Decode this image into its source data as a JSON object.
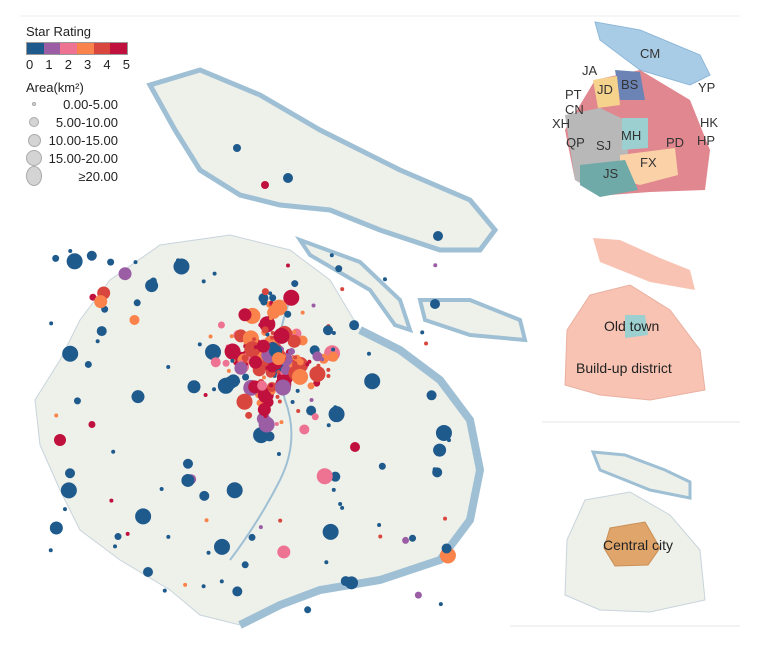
{
  "legend": {
    "star_title": "Star Rating",
    "star_ticks": [
      "0",
      "1",
      "2",
      "3",
      "4",
      "5"
    ],
    "star_colors": [
      "#1f5a8c",
      "#9b5ea5",
      "#ee7291",
      "#f9834a",
      "#d9463e",
      "#c0103e"
    ],
    "area_title": "Area(km²)",
    "area_classes": [
      "0.00-5.00",
      "5.00-10.00",
      "10.00-15.00",
      "15.00-20.00",
      "≥20.00"
    ]
  },
  "inset_districts": {
    "labels": [
      "CM",
      "JA",
      "BS",
      "YP",
      "PT",
      "JD",
      "CN",
      "XH",
      "HK",
      "HP",
      "QP",
      "MH",
      "SJ",
      "PD",
      "FX",
      "JS"
    ]
  },
  "inset_buildup": {
    "old_town": "Old town",
    "buildup": "Build-up district"
  },
  "inset_central": {
    "central": "Central city"
  },
  "colors": {
    "land": "#eef0ea",
    "water": "#9fc0d4",
    "buildup": "#f8c3b3",
    "central": "#e0a56a"
  }
}
